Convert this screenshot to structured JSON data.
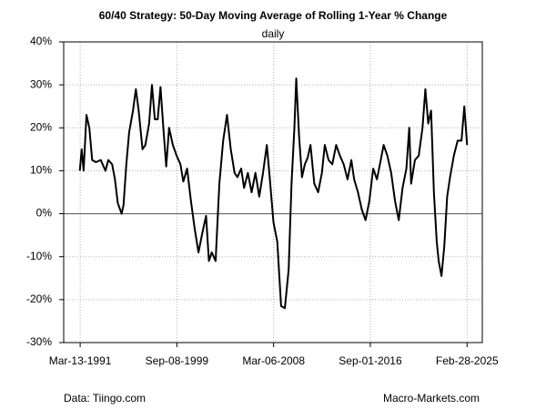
{
  "chart_data": {
    "type": "line",
    "title": "60/40 Strategy: 50-Day Moving Average of Rolling 1-Year % Change",
    "subtitle": "daily",
    "source": "Data: Tiingo.com",
    "credit": "Macro-Markets.com",
    "x": [
      "1991-03-01",
      "1991-05-01",
      "1991-07-01",
      "1991-10-01",
      "1992-01-01",
      "1992-04-01",
      "1992-08-01",
      "1993-01-01",
      "1993-06-01",
      "1993-09-01",
      "1994-01-01",
      "1994-04-01",
      "1994-07-01",
      "1994-11-01",
      "1995-01-01",
      "1995-04-01",
      "1995-07-01",
      "1995-11-01",
      "1996-02-01",
      "1996-05-01",
      "1996-09-01",
      "1996-12-01",
      "1997-04-01",
      "1997-07-01",
      "1997-10-01",
      "1998-01-01",
      "1998-04-01",
      "1998-07-01",
      "1998-10-01",
      "1999-01-01",
      "1999-05-01",
      "1999-09-01",
      "2000-01-01",
      "2000-04-01",
      "2000-08-01",
      "2000-12-01",
      "2001-04-01",
      "2001-08-01",
      "2001-12-01",
      "2002-04-01",
      "2002-07-01",
      "2002-10-01",
      "2003-02-01",
      "2003-06-01",
      "2003-10-01",
      "2004-02-01",
      "2004-06-01",
      "2004-10-01",
      "2005-01-01",
      "2005-05-01",
      "2005-08-01",
      "2005-12-01",
      "2006-04-01",
      "2006-08-01",
      "2006-12-01",
      "2007-04-01",
      "2007-08-01",
      "2007-11-01",
      "2008-03-01",
      "2008-07-01",
      "2008-11-01",
      "2009-03-01",
      "2009-07-01",
      "2009-10-01",
      "2010-01-01",
      "2010-03-01",
      "2010-06-01",
      "2010-09-01",
      "2010-12-01",
      "2011-03-01",
      "2011-06-01",
      "2011-10-01",
      "2012-02-01",
      "2012-06-01",
      "2012-09-01",
      "2013-01-01",
      "2013-05-01",
      "2013-09-01",
      "2014-01-01",
      "2014-05-01",
      "2014-09-01",
      "2015-01-01",
      "2015-04-01",
      "2015-08-01",
      "2015-12-01",
      "2016-04-01",
      "2016-08-01",
      "2016-12-01",
      "2017-04-01",
      "2017-08-01",
      "2017-11-01",
      "2018-03-01",
      "2018-07-01",
      "2018-11-01",
      "2019-03-01",
      "2019-07-01",
      "2019-11-01",
      "2020-02-01",
      "2020-04-01",
      "2020-08-01",
      "2020-12-01",
      "2021-04-01",
      "2021-07-01",
      "2021-10-01",
      "2022-01-01",
      "2022-04-01",
      "2022-07-01",
      "2022-09-01",
      "2022-12-01",
      "2023-03-01",
      "2023-06-01",
      "2023-09-01",
      "2024-01-01",
      "2024-05-01",
      "2024-09-01",
      "2024-12-01",
      "2025-03-01"
    ],
    "series": [
      {
        "color": "#000000",
        "values": [
          10,
          15,
          10,
          23,
          20,
          12.5,
          12,
          12.5,
          10,
          12.5,
          11.5,
          8,
          2.5,
          0,
          2,
          11.5,
          19,
          24,
          29,
          24,
          15,
          16,
          21,
          30,
          22,
          22,
          29.5,
          20,
          11,
          20,
          16,
          13.5,
          11.5,
          7.5,
          10.5,
          3,
          -3.5,
          -9,
          -4.5,
          -0.5,
          -11,
          -9,
          -11,
          7,
          17,
          23,
          15,
          9.5,
          8.5,
          10.5,
          6,
          9.5,
          5,
          9.5,
          4,
          9.5,
          16,
          8.5,
          -2,
          -6.5,
          -21.5,
          -22,
          -13,
          7,
          20,
          31.5,
          18,
          8.5,
          11.5,
          13,
          16,
          7,
          5,
          9.5,
          16,
          12.5,
          11.5,
          16,
          13.5,
          11.5,
          8,
          12.5,
          8,
          5,
          1,
          -1.5,
          3,
          10.5,
          8,
          12.5,
          16,
          13.5,
          9.5,
          3,
          -1.5,
          6,
          10.5,
          20,
          7,
          12.5,
          13.5,
          20,
          29,
          21,
          24,
          5,
          -6.5,
          -11,
          -14.5,
          -7.5,
          4,
          8.5,
          13.5,
          17,
          17,
          25,
          16
        ]
      }
    ],
    "xlim": [
      "1989-10-01",
      "2026-07-01"
    ],
    "xticks": [
      {
        "value": "1991-03-13",
        "label": "Mar-13-1991"
      },
      {
        "value": "1999-09-08",
        "label": "Sep-08-1999"
      },
      {
        "value": "2008-03-06",
        "label": "Mar-06-2008"
      },
      {
        "value": "2016-09-01",
        "label": "Sep-01-2016"
      },
      {
        "value": "2025-02-28",
        "label": "Feb-28-2025"
      }
    ],
    "ylim": [
      -30,
      40
    ],
    "yticks": [
      {
        "value": -30,
        "label": "-30%"
      },
      {
        "value": -20,
        "label": "-20%"
      },
      {
        "value": -10,
        "label": "-10%"
      },
      {
        "value": 0,
        "label": "0%"
      },
      {
        "value": 10,
        "label": "10%"
      },
      {
        "value": 20,
        "label": "20%"
      },
      {
        "value": 30,
        "label": "30%"
      },
      {
        "value": 40,
        "label": "40%"
      }
    ],
    "grid": true,
    "zero_line": true
  }
}
